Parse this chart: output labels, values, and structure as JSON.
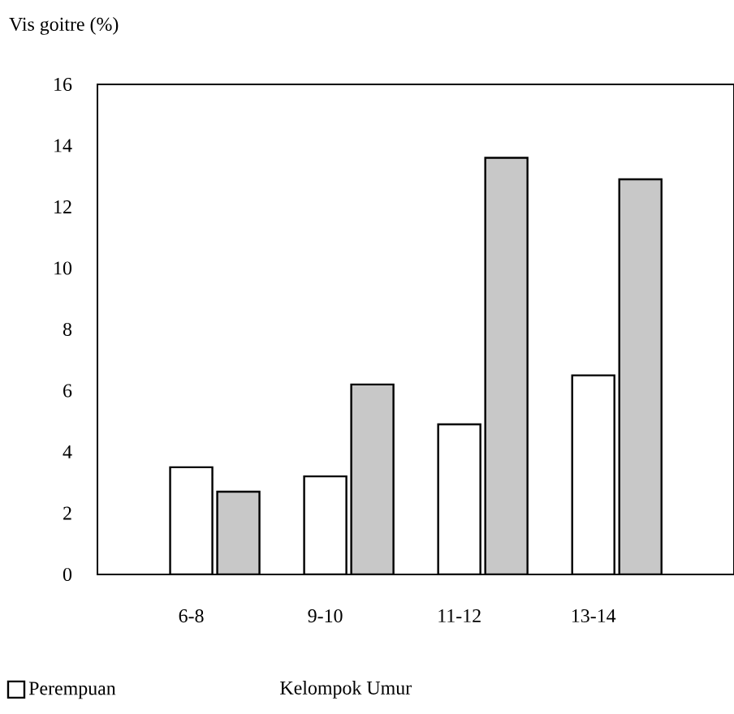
{
  "chart_data": {
    "type": "bar",
    "ylabel": "Vis goitre (%)",
    "xlabel": "Kelompok Umur",
    "categories": [
      "6-8",
      "9-10",
      "11-12",
      "13-14"
    ],
    "series": [
      {
        "name": "Perempuan",
        "color": "#ffffff",
        "values": [
          3.5,
          3.2,
          4.9,
          6.5
        ]
      },
      {
        "color": "#c8c8c8",
        "values": [
          2.7,
          6.2,
          13.6,
          12.9
        ]
      }
    ],
    "ylim": [
      0,
      16
    ],
    "yticks": [
      0,
      2,
      4,
      6,
      8,
      10,
      12,
      14,
      16
    ],
    "grid": false,
    "legend": "bottom left"
  }
}
